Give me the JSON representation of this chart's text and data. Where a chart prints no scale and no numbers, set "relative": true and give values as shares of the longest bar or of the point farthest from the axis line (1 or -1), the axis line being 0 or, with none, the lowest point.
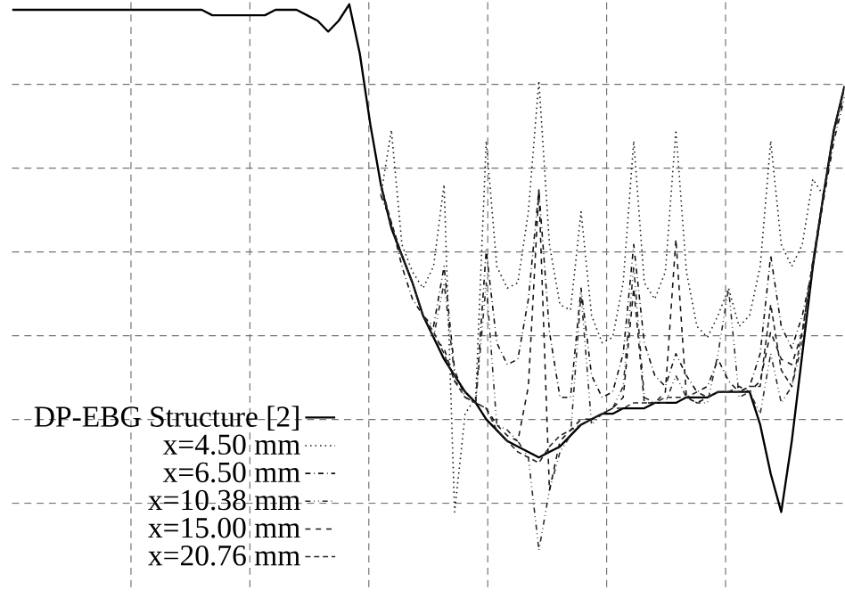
{
  "chart_data": {
    "type": "line",
    "relative": true,
    "grid": true,
    "legend": "bottom left",
    "marker": "none",
    "categories": [
      null,
      null,
      null,
      null,
      null,
      null,
      null,
      null,
      null,
      null,
      null,
      null,
      null,
      null,
      null,
      null,
      null,
      null,
      null,
      null,
      null,
      null,
      null,
      null,
      null,
      null,
      null,
      null,
      null,
      null,
      null,
      null,
      null,
      null,
      null,
      null,
      null,
      null,
      null,
      null,
      null,
      null,
      null,
      null,
      null,
      null,
      null,
      null,
      null,
      null,
      null,
      null,
      null,
      null,
      null,
      null,
      null,
      null,
      null,
      null,
      null,
      null,
      null,
      null,
      null,
      null,
      null,
      null,
      null,
      null,
      null,
      null,
      null,
      null,
      null,
      null,
      null,
      null,
      null,
      null
    ],
    "series": [
      {
        "name": "DP-EBG Structure [2]",
        "color": "#000000",
        "line_style": "solid",
        "values": [
          0.99,
          0.99,
          0.99,
          0.99,
          0.99,
          0.99,
          0.99,
          0.99,
          0.99,
          0.99,
          0.99,
          0.99,
          0.99,
          0.99,
          0.99,
          0.99,
          0.99,
          0.99,
          0.99,
          0.98,
          0.98,
          0.98,
          0.98,
          0.98,
          0.98,
          0.99,
          0.99,
          0.99,
          0.98,
          0.97,
          0.95,
          0.97,
          1.0,
          0.91,
          0.78,
          0.67,
          0.59,
          0.54,
          0.49,
          0.43,
          0.39,
          0.35,
          0.32,
          0.29,
          0.27,
          0.24,
          0.22,
          0.2,
          0.19,
          0.18,
          0.17,
          0.18,
          0.19,
          0.21,
          0.23,
          0.24,
          0.25,
          0.25,
          0.26,
          0.26,
          0.26,
          0.27,
          0.27,
          0.27,
          0.28,
          0.28,
          0.28,
          0.29,
          0.29,
          0.29,
          0.29,
          0.23,
          0.14,
          0.07,
          0.2,
          0.36,
          0.52,
          0.65,
          0.77,
          0.85
        ]
      },
      {
        "name": "x=4.50 mm",
        "color": "#1c1c1c",
        "line_style": "dotted",
        "values": [
          null,
          null,
          null,
          null,
          null,
          null,
          null,
          null,
          null,
          null,
          null,
          null,
          null,
          null,
          null,
          null,
          null,
          null,
          null,
          null,
          null,
          null,
          null,
          null,
          null,
          null,
          null,
          null,
          null,
          null,
          null,
          null,
          null,
          null,
          null,
          0.65,
          0.77,
          0.56,
          0.51,
          0.48,
          0.52,
          0.67,
          0.07,
          0.25,
          0.28,
          0.75,
          0.52,
          0.48,
          0.49,
          0.62,
          0.86,
          0.56,
          0.45,
          0.44,
          0.62,
          0.43,
          0.38,
          0.39,
          0.49,
          0.75,
          0.49,
          0.46,
          0.51,
          0.77,
          0.51,
          0.41,
          0.39,
          0.43,
          0.48,
          0.41,
          0.43,
          0.52,
          0.75,
          0.56,
          0.52,
          0.56,
          0.68,
          0.65,
          0.77,
          0.85
        ]
      },
      {
        "name": "x=6.50 mm",
        "color": "#0e0e0e",
        "line_style": "dashdot",
        "values": [
          null,
          null,
          null,
          null,
          null,
          null,
          null,
          null,
          null,
          null,
          null,
          null,
          null,
          null,
          null,
          null,
          null,
          null,
          null,
          null,
          null,
          null,
          null,
          null,
          null,
          null,
          null,
          null,
          null,
          null,
          null,
          null,
          null,
          null,
          null,
          0.65,
          0.6,
          0.52,
          0.46,
          0.43,
          0.41,
          0.52,
          0.33,
          0.28,
          0.27,
          0.55,
          0.38,
          0.34,
          0.35,
          0.46,
          0.66,
          0.4,
          0.28,
          0.28,
          0.48,
          0.32,
          0.28,
          0.29,
          0.36,
          0.56,
          0.38,
          0.32,
          0.3,
          0.36,
          0.32,
          0.29,
          0.3,
          0.35,
          0.31,
          0.29,
          0.3,
          0.36,
          0.54,
          0.41,
          0.37,
          0.43,
          0.52,
          0.64,
          0.75,
          0.83
        ]
      },
      {
        "name": "x=10.38 mm",
        "color": "#2a2a2a",
        "line_style": "dashdotdot",
        "values": [
          null,
          null,
          null,
          null,
          null,
          null,
          null,
          null,
          null,
          null,
          null,
          null,
          null,
          null,
          null,
          null,
          null,
          null,
          null,
          null,
          null,
          null,
          null,
          null,
          null,
          null,
          null,
          null,
          null,
          null,
          null,
          null,
          null,
          null,
          null,
          0.67,
          0.59,
          0.54,
          0.49,
          0.43,
          0.39,
          0.49,
          0.32,
          0.29,
          0.27,
          0.49,
          0.23,
          0.22,
          0.2,
          0.17,
          0.0,
          0.11,
          0.18,
          0.21,
          0.47,
          0.23,
          0.25,
          0.26,
          0.3,
          0.52,
          0.28,
          0.27,
          0.27,
          0.32,
          0.28,
          0.27,
          0.27,
          0.36,
          0.48,
          0.28,
          0.29,
          0.25,
          0.36,
          0.27,
          0.3,
          0.38,
          0.52,
          0.65,
          0.76,
          0.84
        ]
      },
      {
        "name": "x=15.00 mm",
        "color": "#151515",
        "line_style": "dashed",
        "values": [
          null,
          null,
          null,
          null,
          null,
          null,
          null,
          null,
          null,
          null,
          null,
          null,
          null,
          null,
          null,
          null,
          null,
          null,
          null,
          null,
          null,
          null,
          null,
          null,
          null,
          null,
          null,
          null,
          null,
          null,
          null,
          null,
          null,
          null,
          null,
          0.67,
          0.59,
          0.54,
          0.49,
          0.43,
          0.39,
          0.37,
          0.31,
          0.29,
          0.27,
          0.26,
          0.23,
          0.21,
          0.2,
          0.3,
          0.66,
          0.11,
          0.2,
          0.22,
          0.24,
          0.24,
          0.25,
          0.26,
          0.28,
          0.48,
          0.27,
          0.27,
          0.29,
          0.57,
          0.28,
          0.27,
          0.28,
          0.29,
          0.29,
          0.3,
          0.29,
          0.31,
          0.4,
          0.35,
          0.34,
          0.4,
          0.53,
          0.65,
          0.77,
          0.85
        ]
      },
      {
        "name": "x=20.76 mm",
        "color": "#232323",
        "line_style": "shortdashed",
        "values": [
          null,
          null,
          null,
          null,
          null,
          null,
          null,
          null,
          null,
          null,
          null,
          null,
          null,
          null,
          null,
          null,
          null,
          null,
          null,
          null,
          null,
          null,
          null,
          null,
          null,
          null,
          null,
          null,
          null,
          null,
          null,
          null,
          null,
          null,
          null,
          0.67,
          0.6,
          0.54,
          0.49,
          0.43,
          0.4,
          0.36,
          0.31,
          0.28,
          0.27,
          0.26,
          0.22,
          0.2,
          0.18,
          0.17,
          0.16,
          0.19,
          0.21,
          0.22,
          0.23,
          0.24,
          0.25,
          0.26,
          0.26,
          0.27,
          0.27,
          0.27,
          0.28,
          0.28,
          0.28,
          0.29,
          0.28,
          0.29,
          0.29,
          0.29,
          0.3,
          0.3,
          0.45,
          0.33,
          0.3,
          0.4,
          0.53,
          0.65,
          0.77,
          0.85
        ]
      }
    ]
  }
}
